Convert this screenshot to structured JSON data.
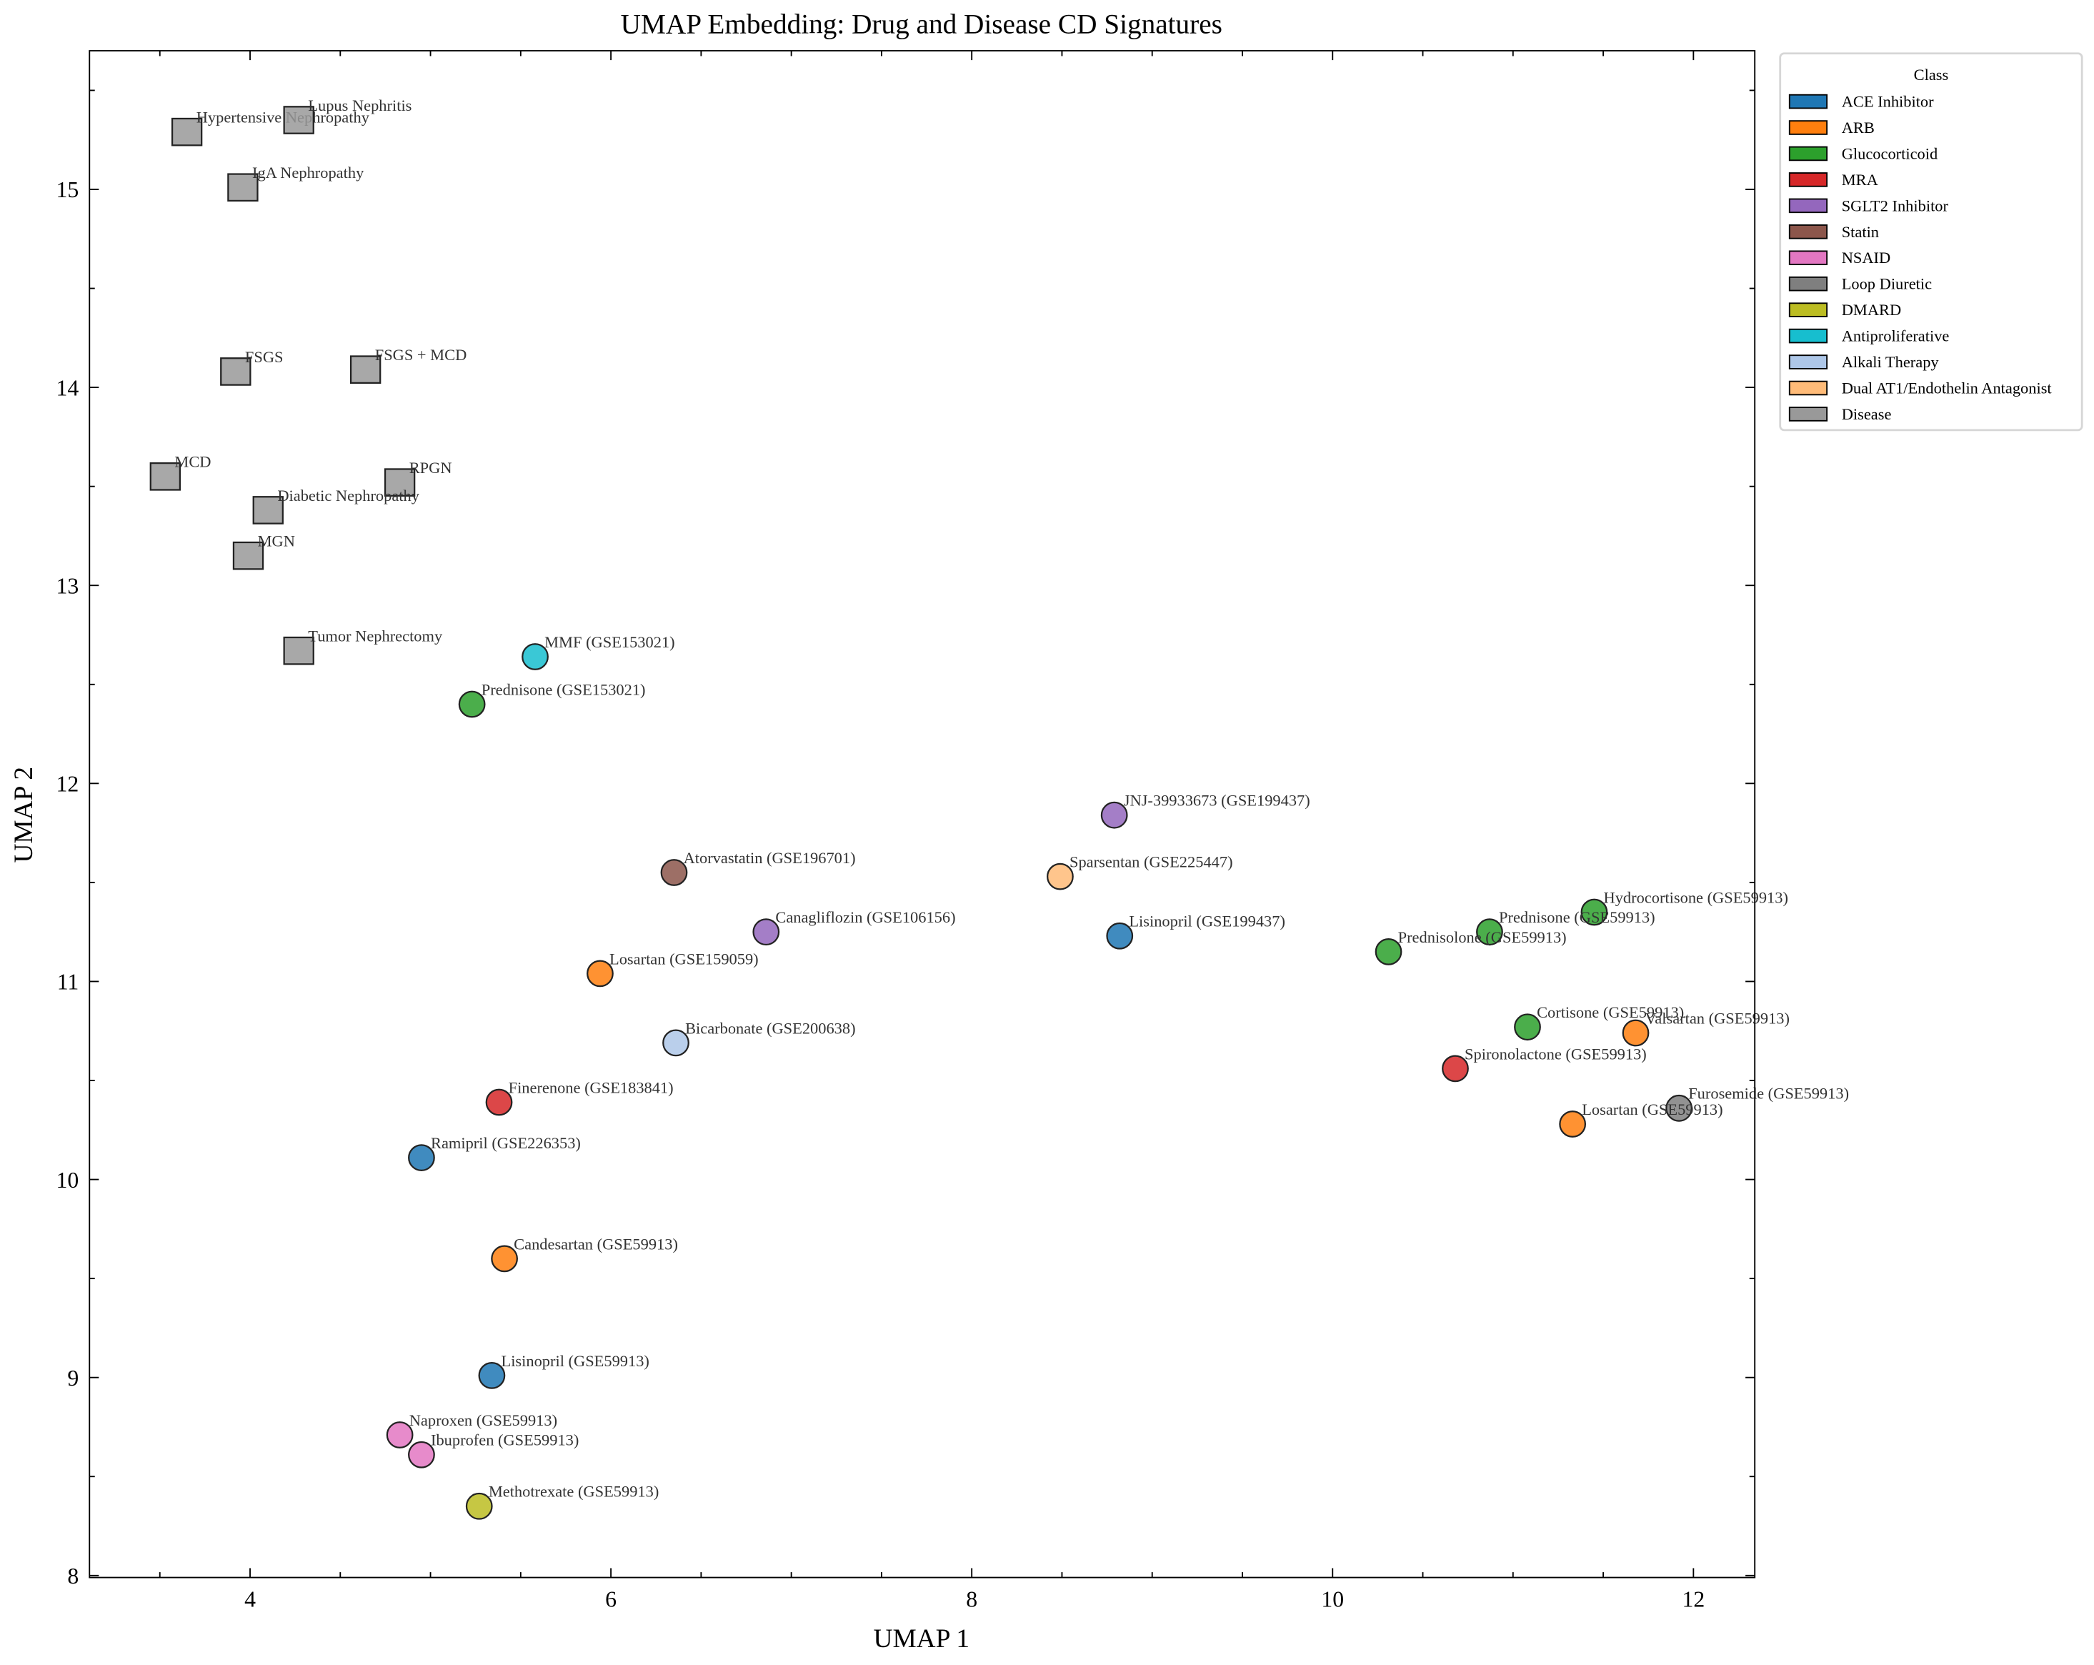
{
  "chart_data": {
    "type": "scatter",
    "title": "UMAP Embedding: Drug and Disease CD Signatures",
    "xlabel": "UMAP 1",
    "ylabel": "UMAP 2",
    "xlim": [
      3.11,
      12.34
    ],
    "ylim": [
      7.99,
      15.7
    ],
    "xticks": [
      4,
      6,
      8,
      10,
      12
    ],
    "yticks": [
      8,
      9,
      10,
      11,
      12,
      13,
      14,
      15
    ],
    "grid": false,
    "legend": {
      "title": "Class",
      "placement": "outside-right-top",
      "entries": [
        {
          "name": "ACE Inhibitor",
          "color": "#1f77b4"
        },
        {
          "name": "ARB",
          "color": "#ff7f0e"
        },
        {
          "name": "Glucocorticoid",
          "color": "#2ca02c"
        },
        {
          "name": "MRA",
          "color": "#d62728"
        },
        {
          "name": "SGLT2 Inhibitor",
          "color": "#9467bd"
        },
        {
          "name": "Statin",
          "color": "#8c564b"
        },
        {
          "name": "NSAID",
          "color": "#e377c2"
        },
        {
          "name": "Loop Diuretic",
          "color": "#7f7f7f"
        },
        {
          "name": "DMARD",
          "color": "#bcbd22"
        },
        {
          "name": "Antiproliferative",
          "color": "#17becf"
        },
        {
          "name": "Alkali Therapy",
          "color": "#aec7e8"
        },
        {
          "name": "Dual AT1/Endothelin Antagonist",
          "color": "#ffbb78"
        },
        {
          "name": "Disease",
          "color": "#999999"
        }
      ]
    },
    "points": [
      {
        "label": "Hypertensive Nephropathy",
        "class": "Disease",
        "marker": "square",
        "x": 3.65,
        "y": 15.29
      },
      {
        "label": "Lupus Nephritis",
        "class": "Disease",
        "marker": "square",
        "x": 4.27,
        "y": 15.35
      },
      {
        "label": "IgA Nephropathy",
        "class": "Disease",
        "marker": "square",
        "x": 3.96,
        "y": 15.01
      },
      {
        "label": "FSGS",
        "class": "Disease",
        "marker": "square",
        "x": 3.92,
        "y": 14.08
      },
      {
        "label": "FSGS + MCD",
        "class": "Disease",
        "marker": "square",
        "x": 4.64,
        "y": 14.09
      },
      {
        "label": "MCD",
        "class": "Disease",
        "marker": "square",
        "x": 3.53,
        "y": 13.55
      },
      {
        "label": "RPGN",
        "class": "Disease",
        "marker": "square",
        "x": 4.83,
        "y": 13.52
      },
      {
        "label": "Diabetic Nephropathy",
        "class": "Disease",
        "marker": "square",
        "x": 4.1,
        "y": 13.38
      },
      {
        "label": "MGN",
        "class": "Disease",
        "marker": "square",
        "x": 3.99,
        "y": 13.15
      },
      {
        "label": "Tumor Nephrectomy",
        "class": "Disease",
        "marker": "square",
        "x": 4.27,
        "y": 12.67
      },
      {
        "label": "MMF (GSE153021)",
        "class": "Antiproliferative",
        "marker": "circle",
        "x": 5.58,
        "y": 12.64
      },
      {
        "label": "Prednisone (GSE153021)",
        "class": "Glucocorticoid",
        "marker": "circle",
        "x": 5.23,
        "y": 12.4
      },
      {
        "label": "JNJ-39933673 (GSE199437)",
        "class": "SGLT2 Inhibitor",
        "marker": "circle",
        "x": 8.79,
        "y": 11.84
      },
      {
        "label": "Sparsentan (GSE225447)",
        "class": "Dual AT1/Endothelin Antagonist",
        "marker": "circle",
        "x": 8.49,
        "y": 11.53
      },
      {
        "label": "Atorvastatin (GSE196701)",
        "class": "Statin",
        "marker": "circle",
        "x": 6.35,
        "y": 11.55
      },
      {
        "label": "Canagliflozin (GSE106156)",
        "class": "SGLT2 Inhibitor",
        "marker": "circle",
        "x": 6.86,
        "y": 11.25
      },
      {
        "label": "Lisinopril (GSE199437)",
        "class": "ACE Inhibitor",
        "marker": "circle",
        "x": 8.82,
        "y": 11.23
      },
      {
        "label": "Losartan (GSE159059)",
        "class": "ARB",
        "marker": "circle",
        "x": 5.94,
        "y": 11.04
      },
      {
        "label": "Bicarbonate (GSE200638)",
        "class": "Alkali Therapy",
        "marker": "circle",
        "x": 6.36,
        "y": 10.69
      },
      {
        "label": "Finerenone (GSE183841)",
        "class": "MRA",
        "marker": "circle",
        "x": 5.38,
        "y": 10.39
      },
      {
        "label": "Ramipril (GSE226353)",
        "class": "ACE Inhibitor",
        "marker": "circle",
        "x": 4.95,
        "y": 10.11
      },
      {
        "label": "Candesartan (GSE59913)",
        "class": "ARB",
        "marker": "circle",
        "x": 5.41,
        "y": 9.6
      },
      {
        "label": "Lisinopril (GSE59913)",
        "class": "ACE Inhibitor",
        "marker": "circle",
        "x": 5.34,
        "y": 9.01
      },
      {
        "label": "Naproxen (GSE59913)",
        "class": "NSAID",
        "marker": "circle",
        "x": 4.83,
        "y": 8.71
      },
      {
        "label": "Ibuprofen (GSE59913)",
        "class": "NSAID",
        "marker": "circle",
        "x": 4.95,
        "y": 8.61
      },
      {
        "label": "Methotrexate (GSE59913)",
        "class": "DMARD",
        "marker": "circle",
        "x": 5.27,
        "y": 8.35
      },
      {
        "label": "Hydrocortisone (GSE59913)",
        "class": "Glucocorticoid",
        "marker": "circle",
        "x": 11.45,
        "y": 11.35
      },
      {
        "label": "Prednisone (GSE59913)",
        "class": "Glucocorticoid",
        "marker": "circle",
        "x": 10.87,
        "y": 11.25
      },
      {
        "label": "Prednisolone (GSE59913)",
        "class": "Glucocorticoid",
        "marker": "circle",
        "x": 10.31,
        "y": 11.15
      },
      {
        "label": "Cortisone (GSE59913)",
        "class": "Glucocorticoid",
        "marker": "circle",
        "x": 11.08,
        "y": 10.77
      },
      {
        "label": "Valsartan (GSE59913)",
        "class": "ARB",
        "marker": "circle",
        "x": 11.68,
        "y": 10.74
      },
      {
        "label": "Spironolactone (GSE59913)",
        "class": "MRA",
        "marker": "circle",
        "x": 10.68,
        "y": 10.56
      },
      {
        "label": "Furosemide (GSE59913)",
        "class": "Loop Diuretic",
        "marker": "circle",
        "x": 11.92,
        "y": 10.36
      },
      {
        "label": "Losartan (GSE59913)",
        "class": "ARB",
        "marker": "circle",
        "x": 11.33,
        "y": 10.28
      }
    ]
  }
}
